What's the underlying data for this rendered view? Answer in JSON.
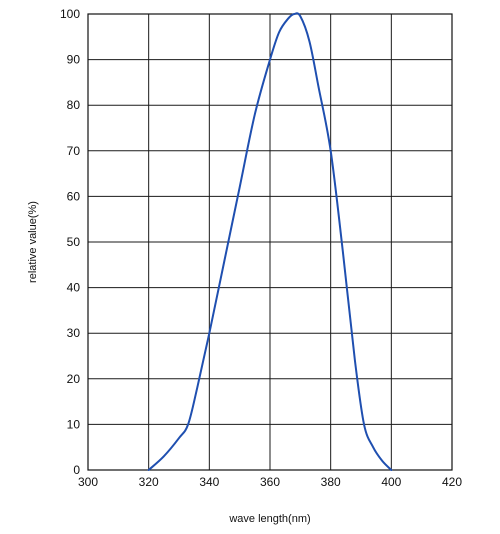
{
  "chart_data": {
    "type": "line",
    "title": "",
    "xlabel": "wave length(nm)",
    "ylabel": "relative value(%)",
    "xlim": [
      300,
      420
    ],
    "ylim": [
      0,
      100
    ],
    "x_ticks": [
      300,
      320,
      340,
      360,
      380,
      400,
      420
    ],
    "y_ticks": [
      0,
      10,
      20,
      30,
      40,
      50,
      60,
      70,
      80,
      90,
      100
    ],
    "grid": true,
    "legend": "none",
    "series": [
      {
        "color": "#1f4fb0",
        "x": [
          320,
          325,
          330,
          333,
          336,
          340,
          345,
          350,
          355,
          360,
          363,
          366,
          368,
          370,
          373,
          376,
          380,
          384,
          388,
          391,
          394,
          397,
          400
        ],
        "y": [
          0,
          3,
          7,
          10,
          18,
          30,
          46,
          62,
          78,
          90,
          96,
          99,
          100,
          99.5,
          94,
          84,
          70,
          48,
          24,
          10,
          5,
          2,
          0
        ]
      }
    ]
  }
}
